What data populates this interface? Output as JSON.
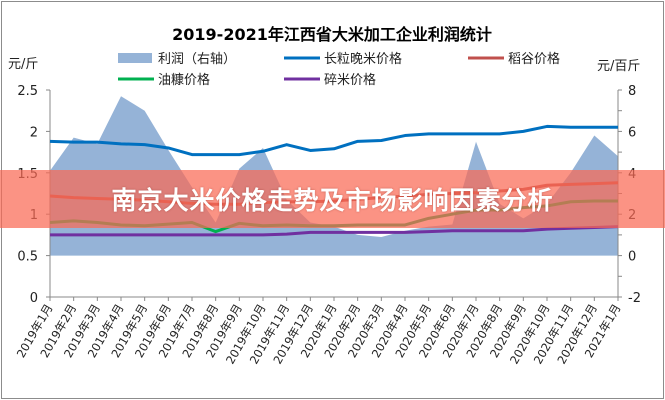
{
  "banner": {
    "text": "南京大米价格走势及市场影响因素分析"
  },
  "chart_data": {
    "type": "line",
    "title": "2019-2021年江西省大米加工企业利润统计",
    "ylabel": "元/斤",
    "y2label": "元/百斤",
    "ylim": [
      0,
      2.5
    ],
    "y2lim": [
      -2,
      8
    ],
    "yticks": [
      "0",
      "0.5",
      "1",
      "1.5",
      "2",
      "2.5"
    ],
    "y2ticks": [
      "-2",
      "0",
      "2",
      "4",
      "6",
      "8"
    ],
    "legend": "top",
    "grid": false,
    "categories": [
      "2019年1月",
      "2019年2月",
      "2019年3月",
      "2019年4月",
      "2019年5月",
      "2019年6月",
      "2019年7月",
      "2019年8月",
      "2019年9月",
      "2019年10月",
      "2019年11月",
      "2019年12月",
      "2020年1月",
      "2020年2月",
      "2020年3月",
      "2020年4月",
      "2020年5月",
      "2020年6月",
      "2020年7月",
      "2020年8月",
      "2020年9月",
      "2020年10月",
      "2020年11月",
      "2020年12月",
      "2021年1月"
    ],
    "series": [
      {
        "name": "利润（右轴）",
        "type": "area",
        "axis": "right",
        "color": "#95b3d7",
        "values": [
          4.1,
          5.7,
          5.4,
          7.7,
          7.0,
          5.1,
          3.3,
          1.6,
          4.2,
          5.2,
          2.7,
          1.6,
          1.4,
          1.0,
          0.9,
          1.2,
          1.4,
          1.5,
          5.5,
          2.5,
          1.8,
          2.5,
          4.0,
          5.8,
          4.8
        ]
      },
      {
        "name": "长粒晚米价格",
        "type": "line",
        "axis": "left",
        "color": "#0070c0",
        "values": [
          1.88,
          1.87,
          1.87,
          1.85,
          1.84,
          1.8,
          1.72,
          1.72,
          1.72,
          1.76,
          1.84,
          1.77,
          1.79,
          1.88,
          1.89,
          1.95,
          1.97,
          1.97,
          1.97,
          1.97,
          2.0,
          2.06,
          2.05,
          2.05,
          2.05
        ]
      },
      {
        "name": "稻谷价格",
        "type": "line",
        "axis": "left",
        "color": "#c0504d",
        "values": [
          1.22,
          1.2,
          1.19,
          1.18,
          1.17,
          1.15,
          1.13,
          1.12,
          1.12,
          1.14,
          1.15,
          1.15,
          1.16,
          1.18,
          1.2,
          1.22,
          1.24,
          1.25,
          1.26,
          1.28,
          1.3,
          1.35,
          1.36,
          1.37,
          1.38
        ]
      },
      {
        "name": "油糠价格",
        "type": "line",
        "axis": "left",
        "color": "#00b050",
        "values": [
          0.9,
          0.92,
          0.9,
          0.87,
          0.86,
          0.88,
          0.9,
          0.79,
          0.89,
          0.86,
          0.87,
          0.86,
          0.86,
          0.87,
          0.87,
          0.87,
          0.95,
          1.0,
          1.05,
          1.05,
          1.08,
          1.1,
          1.15,
          1.16,
          1.16
        ]
      },
      {
        "name": "碎米价格",
        "type": "line",
        "axis": "left",
        "color": "#7030a0",
        "values": [
          0.75,
          0.75,
          0.75,
          0.75,
          0.75,
          0.75,
          0.75,
          0.75,
          0.75,
          0.75,
          0.76,
          0.78,
          0.78,
          0.78,
          0.78,
          0.78,
          0.79,
          0.8,
          0.8,
          0.8,
          0.8,
          0.82,
          0.83,
          0.84,
          0.85
        ]
      }
    ]
  }
}
